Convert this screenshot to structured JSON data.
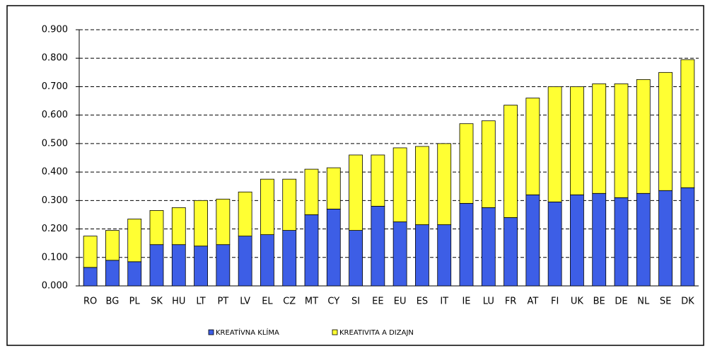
{
  "chart_data": {
    "type": "stacked_bar",
    "categories": [
      "RO",
      "BG",
      "PL",
      "SK",
      "HU",
      "LT",
      "PT",
      "LV",
      "EL",
      "CZ",
      "MT",
      "CY",
      "SI",
      "EE",
      "EU",
      "ES",
      "IT",
      "IE",
      "LU",
      "FR",
      "AT",
      "FI",
      "UK",
      "BE",
      "DE",
      "NL",
      "SE",
      "DK"
    ],
    "series": [
      {
        "name": "KREATÍVNA KLÍMA",
        "color": "#3d5ee6",
        "values": [
          0.065,
          0.09,
          0.085,
          0.145,
          0.145,
          0.14,
          0.145,
          0.175,
          0.18,
          0.195,
          0.25,
          0.27,
          0.195,
          0.28,
          0.225,
          0.215,
          0.215,
          0.29,
          0.275,
          0.24,
          0.32,
          0.295,
          0.32,
          0.325,
          0.31,
          0.325,
          0.335,
          0.345
        ]
      },
      {
        "name": "KREATIVITA A DIZAJN",
        "color": "#ffff33",
        "values": [
          0.11,
          0.105,
          0.15,
          0.12,
          0.13,
          0.16,
          0.16,
          0.155,
          0.195,
          0.18,
          0.16,
          0.145,
          0.265,
          0.18,
          0.26,
          0.275,
          0.285,
          0.28,
          0.305,
          0.395,
          0.34,
          0.405,
          0.38,
          0.385,
          0.4,
          0.4,
          0.415,
          0.45
        ]
      }
    ],
    "ylim": [
      0,
      0.9
    ],
    "yticks": [
      {
        "value": 0,
        "label": "0.000"
      },
      {
        "value": 0.1,
        "label": "0.100"
      },
      {
        "value": 0.2,
        "label": "0.200"
      },
      {
        "value": 0.3,
        "label": "0.300"
      },
      {
        "value": 0.4,
        "label": "0.400"
      },
      {
        "value": 0.5,
        "label": "0.500"
      },
      {
        "value": 0.6,
        "label": "0.600"
      },
      {
        "value": 0.7,
        "label": "0.700"
      },
      {
        "value": 0.8,
        "label": "0.800"
      },
      {
        "value": 0.9,
        "label": "0.900"
      }
    ],
    "grid": true,
    "legend": "bottom"
  }
}
